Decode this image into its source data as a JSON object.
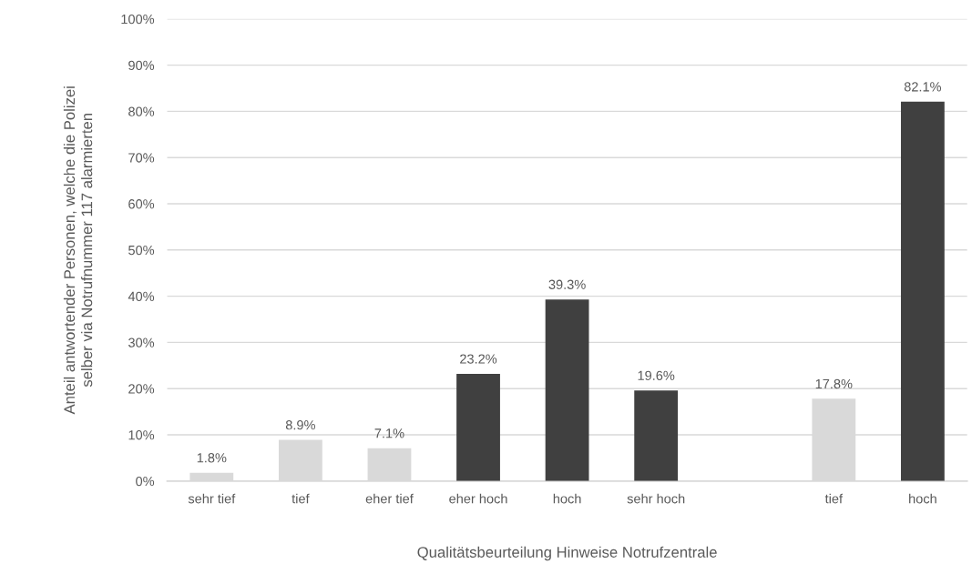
{
  "chart_data": {
    "type": "bar",
    "xlabel": "Qualitätsbeurteilung Hinweise Notrufzentrale",
    "ylabel": "Anteil antwortender Personen, welche die Polizei\nselber via Notrufnummer 117 alarmierten",
    "categories": [
      "sehr tief",
      "tief",
      "eher tief",
      "eher hoch",
      "hoch",
      "sehr hoch",
      null,
      "tief",
      "hoch"
    ],
    "values": [
      1.8,
      8.9,
      7.1,
      23.2,
      39.3,
      19.6,
      null,
      17.8,
      82.1
    ],
    "colors": [
      "#d9d9d9",
      "#d9d9d9",
      "#d9d9d9",
      "#404040",
      "#404040",
      "#404040",
      null,
      "#d9d9d9",
      "#404040"
    ],
    "value_labels": [
      "1.8%",
      "8.9%",
      "7.1%",
      "23.2%",
      "39.3%",
      "19.6%",
      null,
      "17.8%",
      "82.1%"
    ],
    "ylim": [
      0,
      100
    ],
    "yticks": [
      {
        "value": 0,
        "label": "0%"
      },
      {
        "value": 10,
        "label": "10%"
      },
      {
        "value": 20,
        "label": "20%"
      },
      {
        "value": 30,
        "label": "30%"
      },
      {
        "value": 40,
        "label": "40%"
      },
      {
        "value": 50,
        "label": "50%"
      },
      {
        "value": 60,
        "label": "60%"
      },
      {
        "value": 70,
        "label": "70%"
      },
      {
        "value": 80,
        "label": "80%"
      },
      {
        "value": 90,
        "label": "90%"
      },
      {
        "value": 100,
        "label": "100%"
      }
    ],
    "grid": "y"
  }
}
